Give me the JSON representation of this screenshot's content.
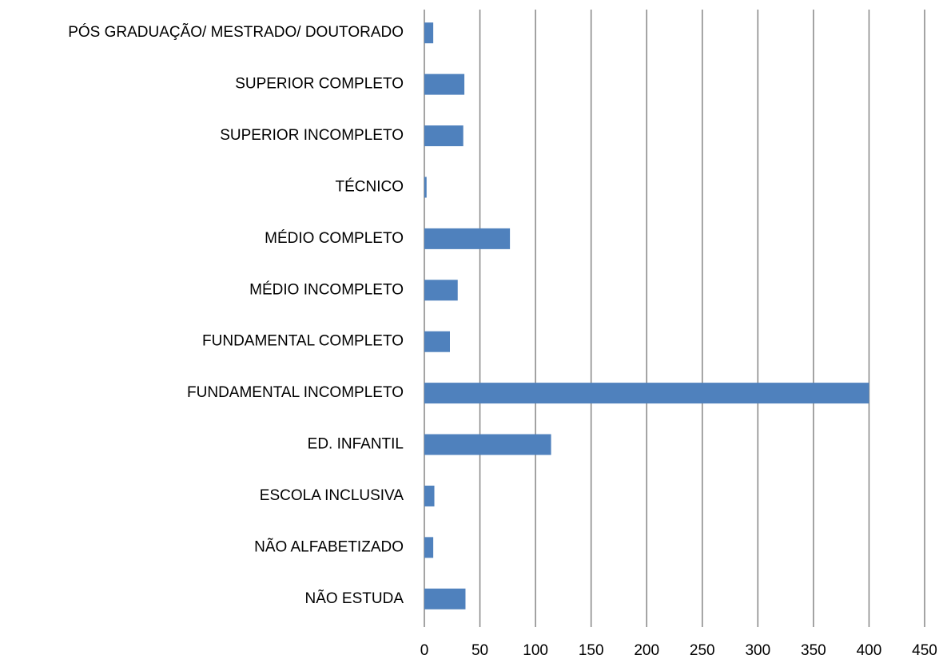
{
  "chart_data": {
    "type": "bar",
    "orientation": "horizontal",
    "categories": [
      "PÓS GRADUAÇÃO/ MESTRADO/ DOUTORADO",
      "SUPERIOR COMPLETO",
      "SUPERIOR INCOMPLETO",
      "TÉCNICO",
      "MÉDIO COMPLETO",
      "MÉDIO INCOMPLETO",
      "FUNDAMENTAL COMPLETO",
      "FUNDAMENTAL INCOMPLETO",
      "ED. INFANTIL",
      "ESCOLA INCLUSIVA",
      "NÃO ALFABETIZADO",
      "NÃO ESTUDA"
    ],
    "values": [
      8,
      36,
      35,
      2,
      77,
      30,
      23,
      400,
      114,
      9,
      8,
      37
    ],
    "color": "#4f81bd",
    "xlim": [
      0,
      450
    ],
    "xticks": [
      0,
      50,
      100,
      150,
      200,
      250,
      300,
      350,
      400,
      450
    ],
    "grid": true
  }
}
